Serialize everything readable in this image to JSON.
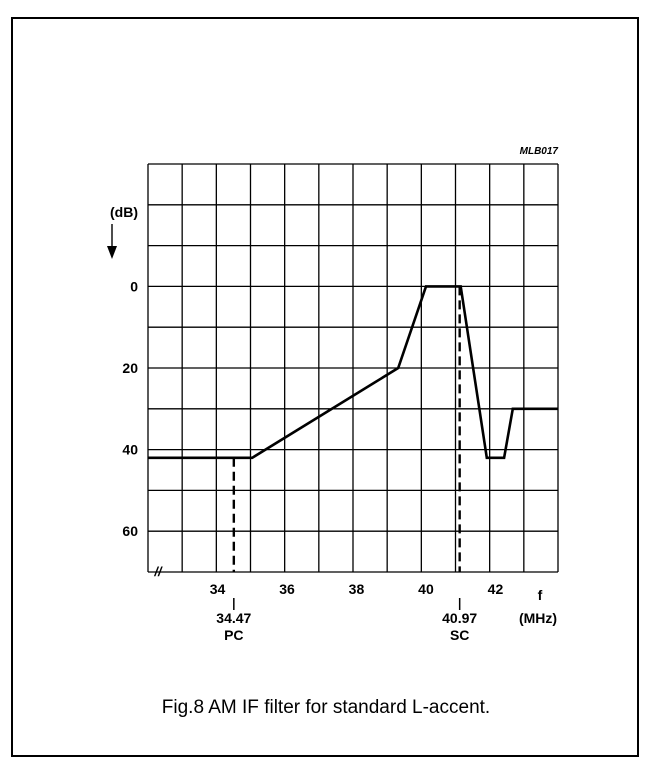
{
  "chart_data": {
    "type": "line",
    "figure_tag": "MLB017",
    "ylabel": "(dB)",
    "xlabel_top": "f",
    "xlabel_bottom": "(MHz)",
    "x_ticks": [
      "34",
      "36",
      "38",
      "40",
      "42"
    ],
    "y_ticks": [
      "0",
      "20",
      "40",
      "60"
    ],
    "xlim": [
      32.0,
      43.8
    ],
    "ylim": [
      70,
      -30
    ],
    "grid": true,
    "series": [
      {
        "x": [
          32.0,
          35.0,
          39.2,
          40.0,
          41.0,
          41.75,
          42.25,
          42.5,
          43.8
        ],
        "values": [
          42,
          42,
          20,
          0,
          0,
          42,
          42,
          30,
          30
        ]
      }
    ],
    "markers": [
      {
        "x": 34.47,
        "value": "34.47",
        "label": "PC"
      },
      {
        "x": 40.97,
        "value": "40.97",
        "label": "SC"
      }
    ],
    "axis_break": "//"
  },
  "caption": "Fig.8  AM IF filter for standard L-accent."
}
